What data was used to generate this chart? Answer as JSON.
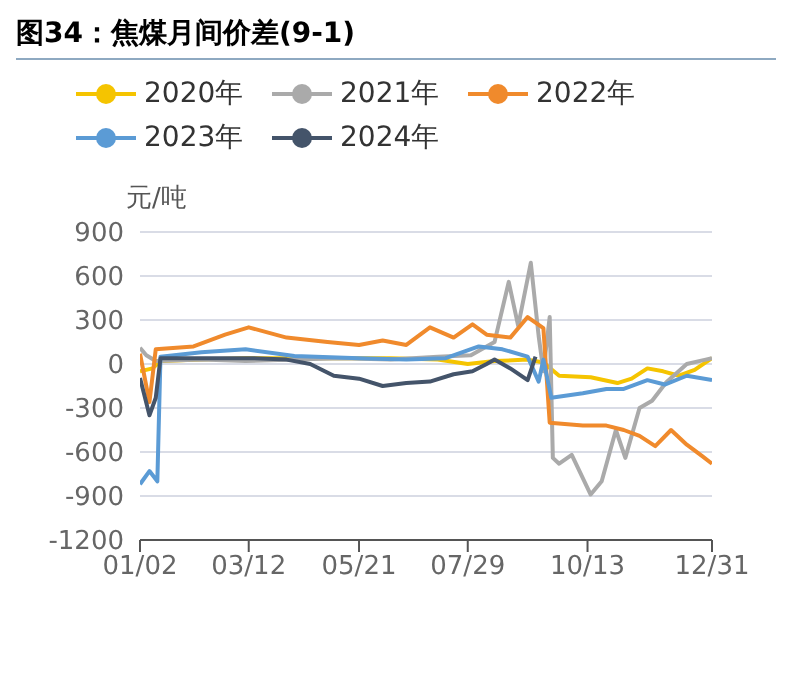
{
  "chart_data": {
    "type": "line",
    "title": "图34：焦煤月间价差(9-1)",
    "ylabel": "元/吨",
    "xlim": [
      "--01-02",
      "--12-31"
    ],
    "xticks": [
      {
        "value": "--01-02",
        "label": "01/02"
      },
      {
        "value": "--03-12",
        "label": "03/12"
      },
      {
        "value": "--05-21",
        "label": "05/21"
      },
      {
        "value": "--07-29",
        "label": "07/29"
      },
      {
        "value": "--10-13",
        "label": "10/13"
      },
      {
        "value": "--12-31",
        "label": "12/31"
      }
    ],
    "ylim": [
      -1200,
      900
    ],
    "yticks": [
      -1200,
      -900,
      -600,
      -300,
      0,
      300,
      600,
      900
    ],
    "grid": "y",
    "legend": "top",
    "line_style": "solid",
    "series": [
      {
        "name": "2020年",
        "color": "#f5c400",
        "x": [
          "--01-02",
          "--01-10",
          "--01-15",
          "--02-10",
          "--03-10",
          "--04-10",
          "--05-10",
          "--06-10",
          "--07-10",
          "--07-29",
          "--08-15",
          "--09-05",
          "--09-15",
          "--09-25",
          "--10-15",
          "--11-01",
          "--11-10",
          "--11-20",
          "--11-30",
          "--12-10",
          "--12-20",
          "--12-31"
        ],
        "values": [
          -50,
          -30,
          20,
          30,
          40,
          40,
          40,
          40,
          30,
          0,
          20,
          30,
          10,
          -80,
          -90,
          -130,
          -100,
          -30,
          -50,
          -80,
          -40,
          40
        ]
      },
      {
        "name": "2021年",
        "color": "#aaaaaa",
        "x": [
          "--01-02",
          "--01-06",
          "--01-12",
          "--02-10",
          "--03-10",
          "--04-10",
          "--05-10",
          "--06-10",
          "--07-10",
          "--07-31",
          "--08-15",
          "--08-24",
          "--08-30",
          "--09-07",
          "--09-12",
          "--09-15",
          "--09-19",
          "--09-21",
          "--09-25",
          "--10-03",
          "--10-15",
          "--10-22",
          "--10-31",
          "--11-06",
          "--11-15",
          "--11-23",
          "--12-02",
          "--12-15",
          "--12-27",
          "--12-31"
        ],
        "values": [
          110,
          60,
          20,
          30,
          20,
          30,
          40,
          30,
          50,
          60,
          150,
          560,
          260,
          690,
          190,
          -50,
          320,
          -640,
          -680,
          -620,
          -890,
          -800,
          -450,
          -640,
          -300,
          -250,
          -125,
          0,
          30,
          40
        ]
      },
      {
        "name": "2022年",
        "color": "#f08a2c",
        "x": [
          "--01-02",
          "--01-08",
          "--01-12",
          "--02-05",
          "--02-25",
          "--03-12",
          "--04-05",
          "--05-01",
          "--05-21",
          "--06-05",
          "--06-20",
          "--07-05",
          "--07-20",
          "--08-01",
          "--08-10",
          "--08-25",
          "--09-05",
          "--09-15",
          "--09-19",
          "--10-10",
          "--10-25",
          "--11-05",
          "--11-15",
          "--11-25",
          "--12-05",
          "--12-15",
          "--12-25",
          "--12-31"
        ],
        "values": [
          70,
          -260,
          100,
          120,
          200,
          250,
          180,
          150,
          130,
          160,
          130,
          250,
          180,
          270,
          200,
          180,
          320,
          245,
          -400,
          -420,
          -420,
          -450,
          -490,
          -560,
          -450,
          -550,
          -630,
          -680
        ]
      },
      {
        "name": "2023年",
        "color": "#5b9bd5",
        "x": [
          "--01-02",
          "--01-08",
          "--01-13",
          "--01-15",
          "--02-10",
          "--03-10",
          "--04-10",
          "--05-21",
          "--06-20",
          "--07-15",
          "--08-05",
          "--08-20",
          "--09-05",
          "--09-12",
          "--09-15",
          "--09-20",
          "--10-10",
          "--10-25",
          "--11-05",
          "--11-20",
          "--12-01",
          "--12-15",
          "--12-31"
        ],
        "values": [
          -820,
          -730,
          -800,
          50,
          80,
          100,
          55,
          40,
          30,
          40,
          120,
          100,
          50,
          -120,
          30,
          -230,
          -200,
          -170,
          -170,
          -110,
          -140,
          -80,
          -110
        ]
      },
      {
        "name": "2024年",
        "color": "#44546a",
        "x": [
          "--01-02",
          "--01-08",
          "--01-12",
          "--01-15",
          "--02-15",
          "--03-15",
          "--04-05",
          "--04-20",
          "--05-05",
          "--05-21",
          "--06-05",
          "--06-20",
          "--07-05",
          "--07-20",
          "--08-01",
          "--08-10",
          "--08-15",
          "--08-25",
          "--09-05",
          "--09-10"
        ],
        "values": [
          -95,
          -350,
          -230,
          40,
          40,
          40,
          30,
          0,
          -80,
          -100,
          -150,
          -130,
          -120,
          -70,
          -50,
          0,
          30,
          -30,
          -110,
          50
        ]
      }
    ]
  }
}
